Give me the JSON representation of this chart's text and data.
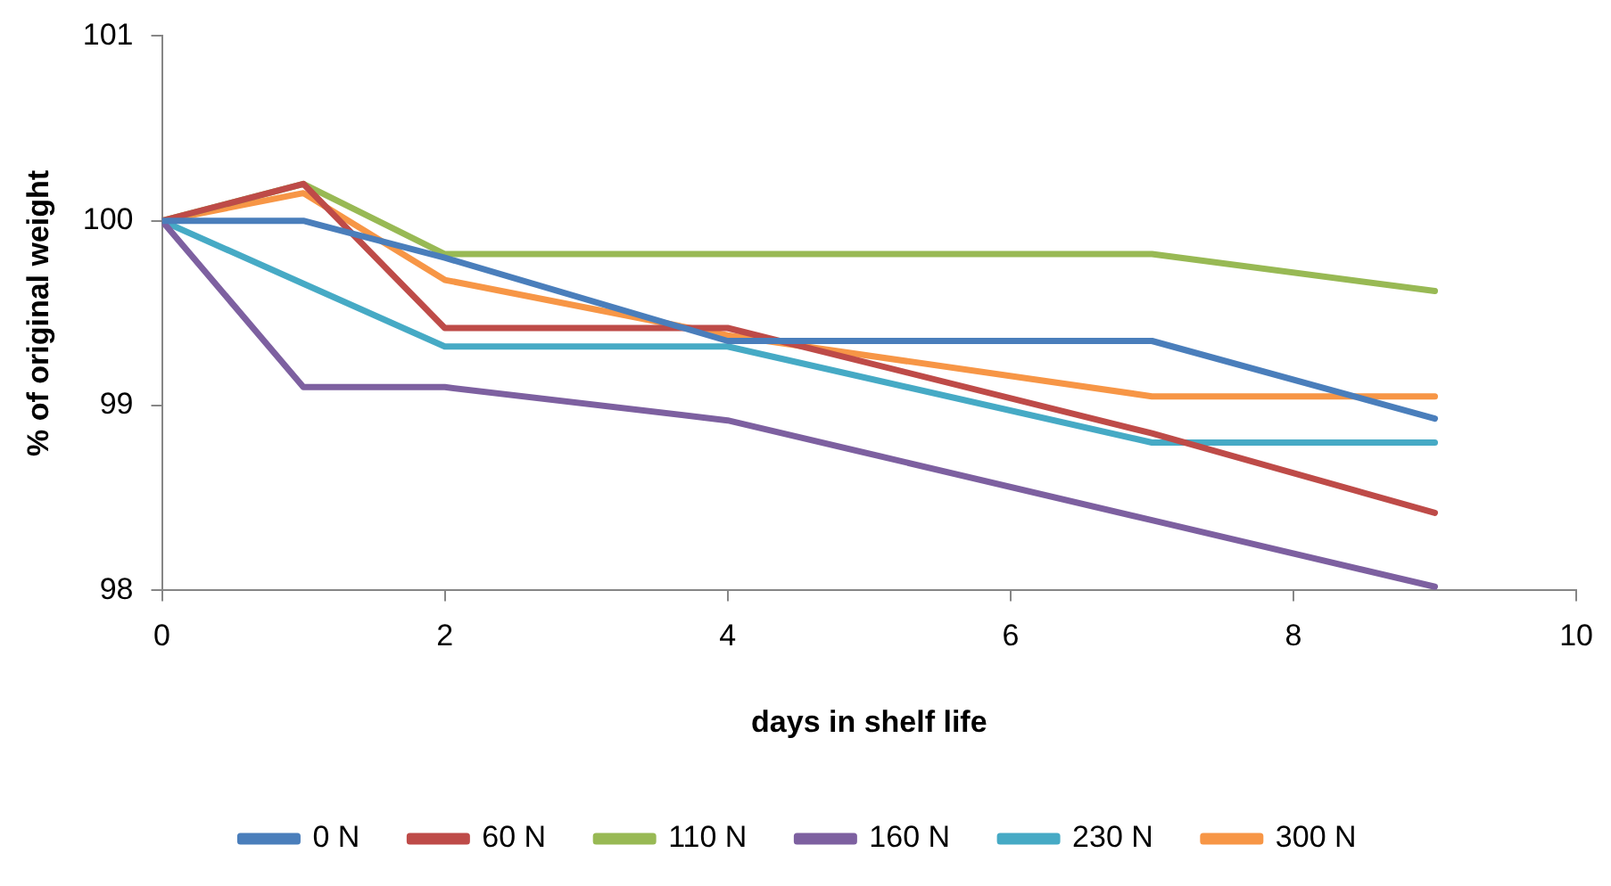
{
  "chart_data": {
    "type": "line",
    "xlabel": "days in shelf life",
    "ylabel": "% of original weight",
    "xlim": [
      0,
      10
    ],
    "xticks": [
      0,
      2,
      4,
      6,
      8,
      10
    ],
    "ylim": [
      98,
      101
    ],
    "yticks": [
      98,
      99,
      100,
      101
    ],
    "grid": false,
    "legend": "bottom",
    "marker": "none",
    "line_style": "solid",
    "series": [
      {
        "name": "0 N",
        "color": "#4a7ebb",
        "x": [
          0,
          1,
          2,
          4,
          7,
          9
        ],
        "values": [
          100,
          100,
          99.8,
          99.35,
          99.35,
          98.93
        ]
      },
      {
        "name": "60 N",
        "color": "#be4b48",
        "x": [
          0,
          1,
          2,
          4,
          7,
          9
        ],
        "values": [
          100,
          100.2,
          99.42,
          99.42,
          98.85,
          98.42
        ]
      },
      {
        "name": "110 N",
        "color": "#98b954",
        "x": [
          0,
          1,
          2,
          4,
          7,
          9
        ],
        "values": [
          100,
          100.2,
          99.82,
          99.82,
          99.82,
          99.62
        ]
      },
      {
        "name": "160 N",
        "color": "#7d60a0",
        "x": [
          0,
          1,
          2,
          4,
          7,
          9
        ],
        "values": [
          100,
          99.1,
          99.1,
          98.92,
          98.38,
          98.02
        ]
      },
      {
        "name": "230 N",
        "color": "#46aac5",
        "x": [
          0,
          1,
          2,
          4,
          7,
          9
        ],
        "values": [
          100,
          99.66,
          99.32,
          99.32,
          98.8,
          98.8
        ]
      },
      {
        "name": "300 N",
        "color": "#f79646",
        "x": [
          0,
          1,
          2,
          4,
          7,
          9
        ],
        "values": [
          100,
          100.15,
          99.68,
          99.38,
          99.05,
          99.05
        ]
      }
    ]
  }
}
